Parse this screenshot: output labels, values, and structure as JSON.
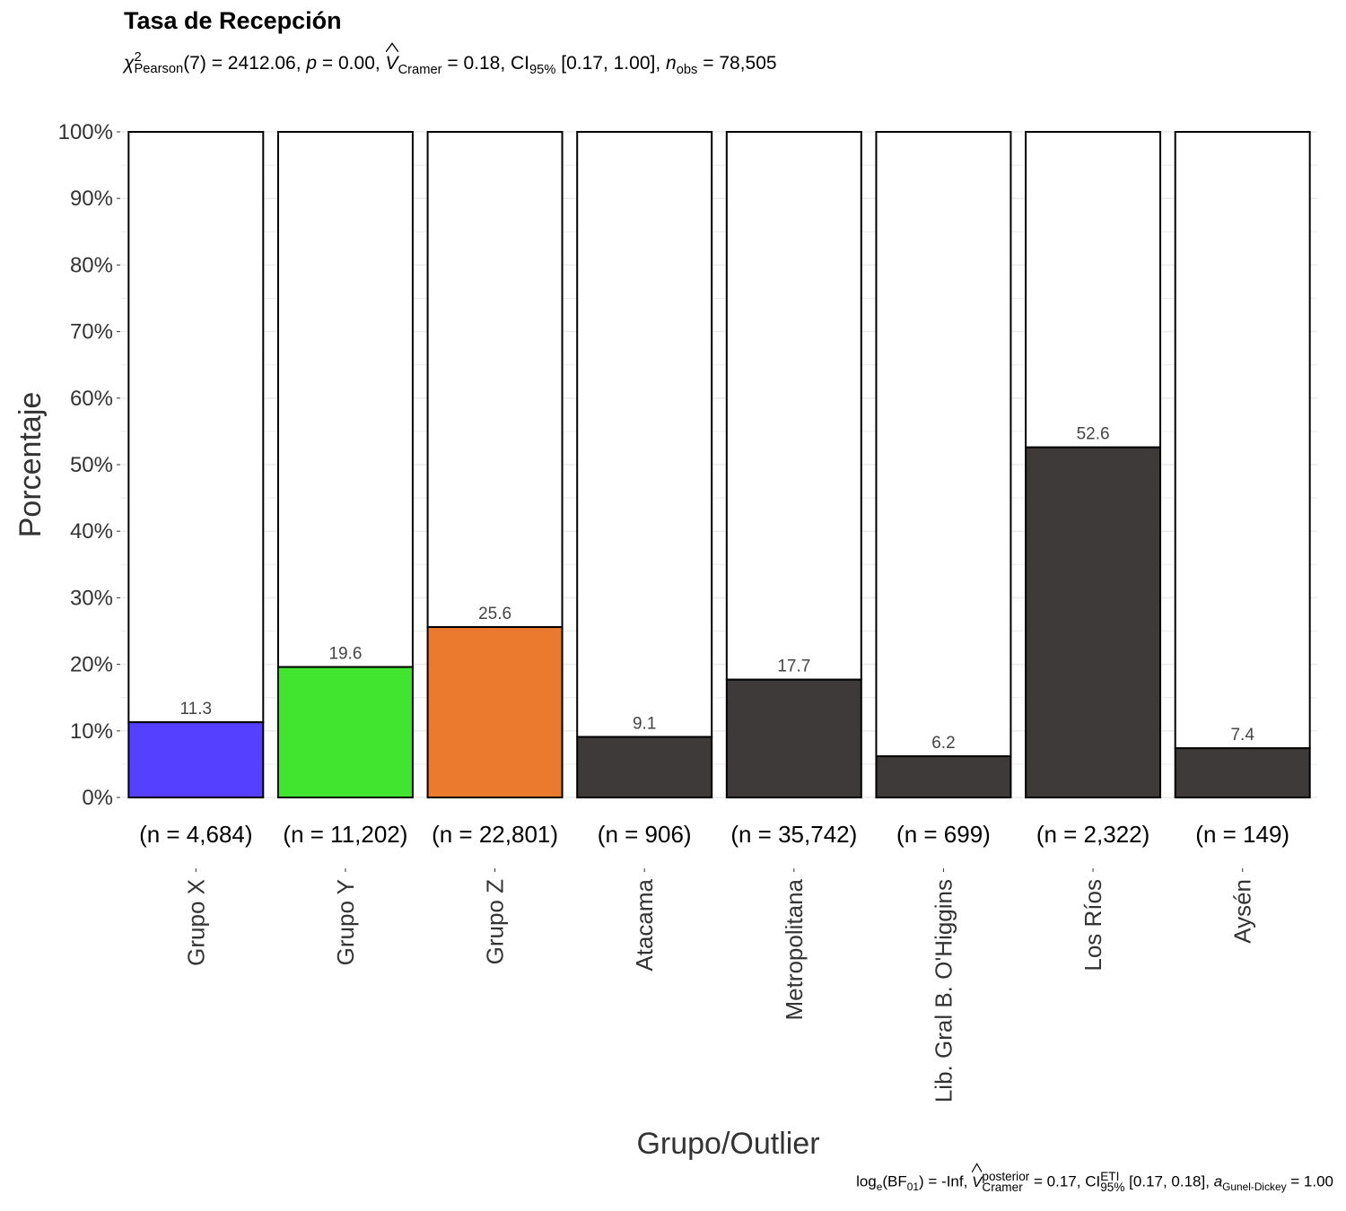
{
  "chart_data": {
    "type": "bar",
    "stacked_percent": true,
    "title": "Tasa de Recepción",
    "subtitle": {
      "chi_symbol": "χ",
      "chi_sup": "2",
      "chi_sub": "Pearson",
      "chi_rest": "(7) = 2412.06, ",
      "p_symbol": "p",
      "p_rest": " = 0.00, ",
      "v_symbol": "V",
      "v_sub": "Cramer",
      "v_rest": " = 0.18, CI",
      "ci_sub": "95%",
      "ci_rest": " [0.17, 1.00], ",
      "n_symbol": "n",
      "n_sub": "obs",
      "n_rest": " = 78,505"
    },
    "caption": {
      "log_text": "log",
      "log_sub": "e",
      "bf_text": "(BF",
      "bf_sub": "01",
      "bf_rest": ") = -Inf, ",
      "v_symbol": "V",
      "v_sup": "posterior",
      "v_sub": "Cramer",
      "v_rest": " = 0.17, CI",
      "ci_sup": "ETI",
      "ci_sub": "95%",
      "ci_rest": " [0.17, 0.18], ",
      "a_symbol": "a",
      "a_sub": "Gunel-Dickey",
      "a_rest": " = 1.00"
    },
    "xlabel": "Grupo/Outlier",
    "ylabel": "Porcentaje",
    "ylim": [
      0,
      100
    ],
    "yticks": [
      "0%",
      "10%",
      "20%",
      "30%",
      "40%",
      "50%",
      "60%",
      "70%",
      "80%",
      "90%",
      "100%"
    ],
    "categories": [
      "Grupo X",
      "Grupo Y",
      "Grupo Z",
      "Atacama",
      "Metropolitana",
      "Lib. Gral B. O'Higgins",
      "Los Ríos",
      "Aysén"
    ],
    "counts": [
      "(n = 4,684)",
      "(n = 11,202)",
      "(n = 22,801)",
      "(n = 906)",
      "(n = 35,742)",
      "(n = 699)",
      "(n = 2,322)",
      "(n = 149)"
    ],
    "values": [
      11.3,
      19.6,
      25.6,
      9.1,
      17.7,
      6.2,
      52.6,
      7.4
    ],
    "value_labels": [
      "11.3",
      "19.6",
      "25.6",
      "9.1",
      "17.7",
      "6.2",
      "52.6",
      "7.4"
    ],
    "bar_colors": [
      "#5540FF",
      "#41E52F",
      "#EB7A2E",
      "#3E3A39",
      "#3E3A39",
      "#3E3A39",
      "#3E3A39",
      "#3E3A39"
    ],
    "remainder_color": "#FFFFFF",
    "grid": true,
    "legend": "none"
  }
}
